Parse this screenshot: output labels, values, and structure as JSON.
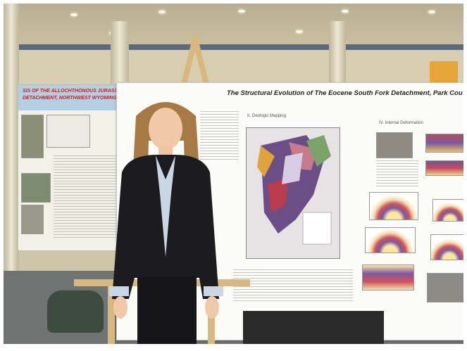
{
  "photo": {
    "description_colors": {
      "wall": "#d8cfb2",
      "floor": "#6f7371",
      "blazer": "#1c1c20",
      "shirt": "#c9d6e6",
      "hair": "#a77a45"
    }
  },
  "poster_main": {
    "title": "The Structural Evolution of The Eocene South Fork Detachment, Park Cou",
    "section_map": "II. Geologic Mapping",
    "section_deformation": "IV. Internal Deformation"
  },
  "poster_left": {
    "title_line1": "SIS OF THE ALLOCHTHONOUS JURASSIC",
    "title_line2": "DETACHMENT, NORTHWEST WYOMING"
  }
}
